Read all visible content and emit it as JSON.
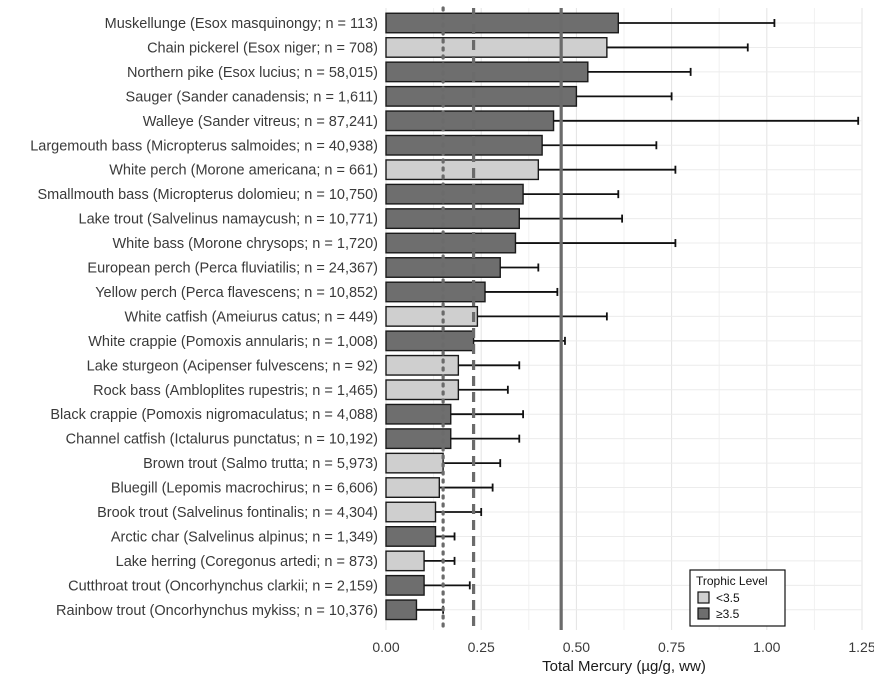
{
  "chart_data": {
    "type": "bar",
    "orientation": "horizontal",
    "xlabel": "Total Mercury (µg/g, ww)",
    "xlim": [
      0,
      1.25
    ],
    "xticks": [
      0.0,
      0.25,
      0.5,
      0.75,
      1.0,
      1.25
    ],
    "xtick_labels": [
      "0.00",
      "0.25",
      "0.50",
      "0.75",
      "1.00",
      "1.25"
    ],
    "grid": true,
    "categories": [
      "Muskellunge (Esox masquinongy; n = 113)",
      "Chain pickerel (Esox niger; n = 708)",
      "Northern pike (Esox lucius; n = 58,015)",
      "Sauger (Sander canadensis; n = 1,611)",
      "Walleye (Sander vitreus; n = 87,241)",
      "Largemouth bass (Micropterus salmoides; n = 40,938)",
      "White perch (Morone americana; n = 661)",
      "Smallmouth bass (Micropterus dolomieu; n = 10,750)",
      "Lake trout (Salvelinus namaycush; n = 10,771)",
      "White bass (Morone chrysops; n = 1,720)",
      "European perch (Perca fluviatilis; n = 24,367)",
      "Yellow perch (Perca flavescens; n = 10,852)",
      "White catfish (Ameiurus catus; n = 449)",
      "White crappie (Pomoxis annularis; n = 1,008)",
      "Lake sturgeon (Acipenser fulvescens; n = 92)",
      "Rock bass (Ambloplites rupestris; n = 1,465)",
      "Black crappie (Pomoxis nigromaculatus; n = 4,088)",
      "Channel catfish (Ictalurus punctatus; n = 10,192)",
      "Brown trout (Salmo trutta; n = 5,973)",
      "Bluegill (Lepomis macrochirus; n = 6,606)",
      "Brook trout (Salvelinus fontinalis; n = 4,304)",
      "Arctic char (Salvelinus alpinus; n = 1,349)",
      "Lake herring (Coregonus artedi; n = 873)",
      "Cutthroat trout (Oncorhynchus clarkii; n = 2,159)",
      "Rainbow trout (Oncorhynchus mykiss; n = 10,376)"
    ],
    "values": [
      0.61,
      0.58,
      0.53,
      0.5,
      0.44,
      0.41,
      0.4,
      0.36,
      0.35,
      0.34,
      0.3,
      0.26,
      0.24,
      0.23,
      0.19,
      0.19,
      0.17,
      0.17,
      0.15,
      0.14,
      0.13,
      0.13,
      0.1,
      0.1,
      0.08
    ],
    "error_upper": [
      1.02,
      0.95,
      0.8,
      0.75,
      1.24,
      0.71,
      0.76,
      0.61,
      0.62,
      0.76,
      0.4,
      0.45,
      0.58,
      0.47,
      0.35,
      0.32,
      0.36,
      0.35,
      0.3,
      0.28,
      0.25,
      0.18,
      0.18,
      0.22,
      0.15
    ],
    "trophic_group": [
      "high",
      "low",
      "high",
      "high",
      "high",
      "high",
      "low",
      "high",
      "high",
      "high",
      "high",
      "high",
      "low",
      "high",
      "low",
      "low",
      "high",
      "high",
      "low",
      "low",
      "low",
      "high",
      "low",
      "high",
      "high"
    ],
    "reference_lines": [
      {
        "value": 0.15,
        "style": "dotted"
      },
      {
        "value": 0.23,
        "style": "dashed"
      },
      {
        "value": 0.46,
        "style": "solid"
      }
    ],
    "legend": {
      "title": "Trophic Level",
      "placement": "bottom-right",
      "entries": [
        {
          "key": "low",
          "label": "<3.5",
          "color": "#cfcfcf"
        },
        {
          "key": "high",
          "label": "≥3.5",
          "color": "#6e6e6e"
        }
      ]
    },
    "colors": {
      "low": "#cfcfcf",
      "high": "#6e6e6e",
      "reference": "#6b6b6b",
      "grid": "#e3e3e3"
    }
  }
}
